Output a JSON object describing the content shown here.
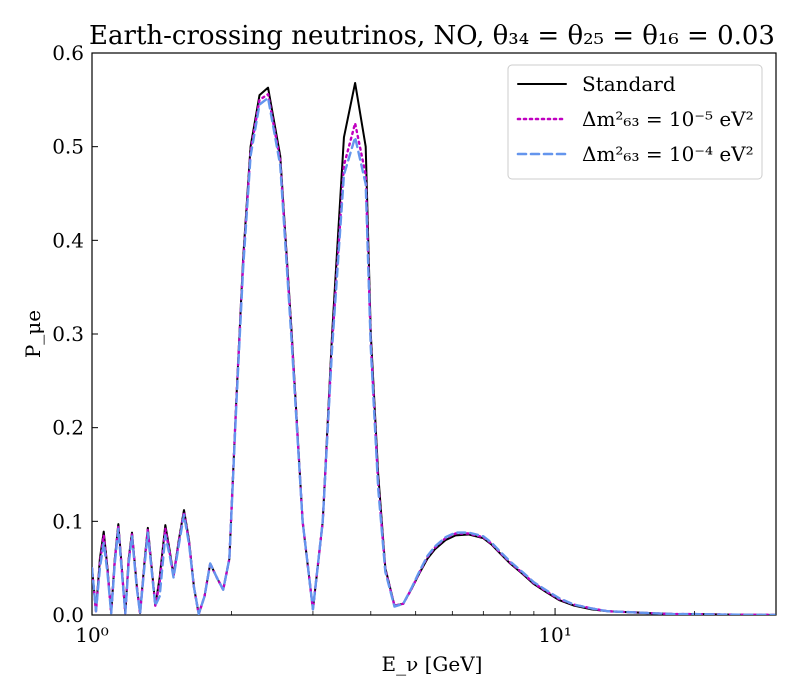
{
  "chart_data": {
    "type": "line",
    "title": "Earth-crossing neutrinos, NO, θ₃₄ = θ₂₅ = θ₁₆ = 0.03",
    "xlabel": "E_ν [GeV]",
    "ylabel": "P_μe",
    "xscale": "log",
    "xlim": [
      1.0,
      30.0
    ],
    "ylim": [
      0,
      0.6
    ],
    "x_ticks": [
      {
        "value": 1,
        "label": "10⁰"
      },
      {
        "value": 10,
        "label": "10¹"
      }
    ],
    "y_ticks": [
      {
        "value": 0.0,
        "label": "0.0"
      },
      {
        "value": 0.1,
        "label": "0.1"
      },
      {
        "value": 0.2,
        "label": "0.2"
      },
      {
        "value": 0.3,
        "label": "0.3"
      },
      {
        "value": 0.4,
        "label": "0.4"
      },
      {
        "value": 0.5,
        "label": "0.5"
      },
      {
        "value": 0.6,
        "label": "0.6"
      }
    ],
    "grid": false,
    "legend_position": "top-right",
    "series": [
      {
        "name": "Standard",
        "color": "#000000",
        "style": "solid",
        "x": [
          1.0,
          1.02,
          1.04,
          1.06,
          1.08,
          1.1,
          1.12,
          1.14,
          1.16,
          1.18,
          1.2,
          1.22,
          1.25,
          1.27,
          1.3,
          1.32,
          1.34,
          1.37,
          1.4,
          1.44,
          1.47,
          1.5,
          1.54,
          1.58,
          1.62,
          1.66,
          1.7,
          1.75,
          1.8,
          1.86,
          1.92,
          1.98,
          2.05,
          2.12,
          2.2,
          2.3,
          2.4,
          2.55,
          2.7,
          2.85,
          3.0,
          3.15,
          3.3,
          3.5,
          3.7,
          3.9,
          4.0,
          4.15,
          4.3,
          4.5,
          4.7,
          4.9,
          5.1,
          5.3,
          5.5,
          5.8,
          6.1,
          6.5,
          7.0,
          7.3,
          7.6,
          8.0,
          8.5,
          9.0,
          9.6,
          10.2,
          11.0,
          12.0,
          13.0,
          14.5,
          16.0,
          18.0,
          20.0,
          23.0,
          26.0,
          30.0
        ],
        "y": [
          0.05,
          0.004,
          0.06,
          0.089,
          0.05,
          0.002,
          0.06,
          0.097,
          0.05,
          0.002,
          0.06,
          0.088,
          0.03,
          0.002,
          0.06,
          0.093,
          0.06,
          0.01,
          0.04,
          0.096,
          0.07,
          0.042,
          0.08,
          0.112,
          0.08,
          0.03,
          0.001,
          0.02,
          0.055,
          0.04,
          0.027,
          0.06,
          0.23,
          0.38,
          0.5,
          0.555,
          0.563,
          0.49,
          0.3,
          0.1,
          0.006,
          0.1,
          0.3,
          0.51,
          0.568,
          0.5,
          0.3,
          0.15,
          0.05,
          0.01,
          0.012,
          0.028,
          0.045,
          0.06,
          0.07,
          0.08,
          0.085,
          0.086,
          0.082,
          0.075,
          0.066,
          0.055,
          0.044,
          0.033,
          0.024,
          0.016,
          0.01,
          0.006,
          0.004,
          0.003,
          0.002,
          0.001,
          0.001,
          0.0005,
          0.0002,
          0.0001
        ]
      },
      {
        "name": "Δm²₆₃ = 10⁻⁵ eV²",
        "color": "#c000c0",
        "style": "dotted",
        "x": [
          1.0,
          1.02,
          1.04,
          1.06,
          1.08,
          1.1,
          1.12,
          1.14,
          1.16,
          1.18,
          1.2,
          1.22,
          1.25,
          1.27,
          1.3,
          1.32,
          1.34,
          1.37,
          1.4,
          1.44,
          1.47,
          1.5,
          1.54,
          1.58,
          1.62,
          1.66,
          1.7,
          1.75,
          1.8,
          1.86,
          1.92,
          1.98,
          2.05,
          2.12,
          2.2,
          2.3,
          2.4,
          2.55,
          2.7,
          2.85,
          3.0,
          3.15,
          3.3,
          3.5,
          3.7,
          3.9,
          4.0,
          4.15,
          4.3,
          4.5,
          4.7,
          4.9,
          5.1,
          5.3,
          5.5,
          5.8,
          6.1,
          6.5,
          7.0,
          7.3,
          7.6,
          8.0,
          8.5,
          9.0,
          9.6,
          10.2,
          11.0,
          12.0,
          13.0,
          14.5,
          16.0,
          18.0,
          20.0,
          23.0,
          26.0,
          30.0
        ],
        "y": [
          0.05,
          0.004,
          0.055,
          0.085,
          0.048,
          0.002,
          0.058,
          0.095,
          0.048,
          0.002,
          0.058,
          0.086,
          0.03,
          0.002,
          0.058,
          0.091,
          0.058,
          0.01,
          0.035,
          0.092,
          0.068,
          0.042,
          0.078,
          0.11,
          0.078,
          0.03,
          0.001,
          0.02,
          0.055,
          0.04,
          0.027,
          0.06,
          0.23,
          0.375,
          0.495,
          0.55,
          0.556,
          0.485,
          0.295,
          0.1,
          0.006,
          0.1,
          0.29,
          0.48,
          0.525,
          0.47,
          0.29,
          0.14,
          0.048,
          0.01,
          0.012,
          0.028,
          0.046,
          0.062,
          0.072,
          0.082,
          0.087,
          0.087,
          0.083,
          0.076,
          0.067,
          0.056,
          0.045,
          0.034,
          0.025,
          0.017,
          0.011,
          0.007,
          0.004,
          0.003,
          0.002,
          0.001,
          0.001,
          0.0005,
          0.0002,
          0.0001
        ]
      },
      {
        "name": "Δm²₆₃ = 10⁻⁴ eV²",
        "color": "#6495ed",
        "style": "dashed",
        "x": [
          1.0,
          1.02,
          1.04,
          1.06,
          1.08,
          1.1,
          1.12,
          1.14,
          1.16,
          1.18,
          1.2,
          1.22,
          1.25,
          1.27,
          1.3,
          1.32,
          1.34,
          1.37,
          1.4,
          1.44,
          1.47,
          1.5,
          1.54,
          1.58,
          1.62,
          1.66,
          1.7,
          1.75,
          1.8,
          1.86,
          1.92,
          1.98,
          2.05,
          2.12,
          2.2,
          2.3,
          2.4,
          2.55,
          2.7,
          2.85,
          3.0,
          3.15,
          3.3,
          3.5,
          3.7,
          3.9,
          4.0,
          4.15,
          4.3,
          4.5,
          4.7,
          4.9,
          5.1,
          5.3,
          5.5,
          5.8,
          6.1,
          6.5,
          7.0,
          7.3,
          7.6,
          8.0,
          8.5,
          9.0,
          9.6,
          10.2,
          11.0,
          12.0,
          13.0,
          14.5,
          16.0,
          18.0,
          20.0,
          23.0,
          26.0,
          30.0
        ],
        "y": [
          0.05,
          0.004,
          0.05,
          0.077,
          0.045,
          0.002,
          0.055,
          0.092,
          0.046,
          0.002,
          0.055,
          0.084,
          0.028,
          0.002,
          0.055,
          0.088,
          0.056,
          0.01,
          0.02,
          0.085,
          0.065,
          0.04,
          0.075,
          0.107,
          0.076,
          0.03,
          0.001,
          0.02,
          0.055,
          0.04,
          0.027,
          0.06,
          0.225,
          0.37,
          0.49,
          0.545,
          0.552,
          0.48,
          0.29,
          0.1,
          0.006,
          0.1,
          0.285,
          0.47,
          0.51,
          0.46,
          0.285,
          0.135,
          0.046,
          0.009,
          0.012,
          0.029,
          0.047,
          0.063,
          0.073,
          0.083,
          0.088,
          0.088,
          0.084,
          0.077,
          0.068,
          0.057,
          0.046,
          0.035,
          0.026,
          0.018,
          0.011,
          0.007,
          0.004,
          0.003,
          0.002,
          0.001,
          0.001,
          0.0005,
          0.0002,
          0.0001
        ]
      }
    ]
  }
}
